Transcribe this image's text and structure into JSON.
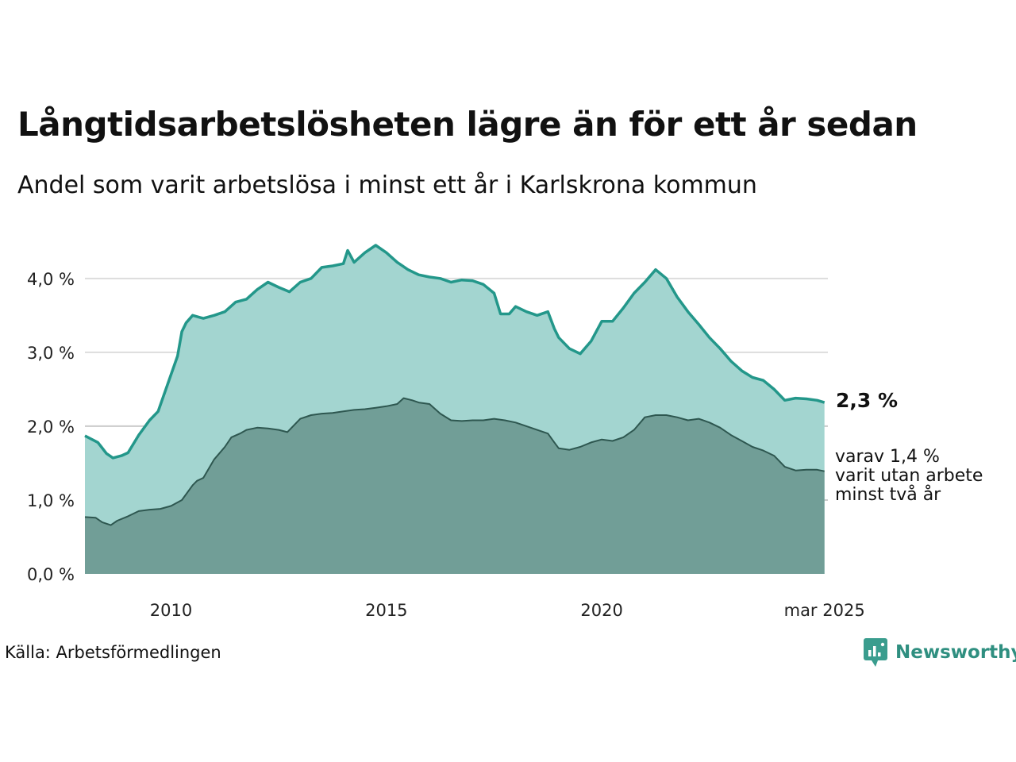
{
  "title": "Långtidsarbetslösheten lägre än för ett år sedan",
  "subtitle": "Andel som varit arbetslösa i minst ett år i Karlskrona kommun",
  "source": "Källa: Arbetsförmedlingen",
  "brand": "Newsworthy",
  "colors": {
    "series1_line": "#23978a",
    "series1_fill": "#a3d5d0",
    "series2_line": "#2e5750",
    "series2_fill": "#719e97",
    "grid": "#dddddd"
  },
  "chart_data": {
    "type": "area",
    "xlim": [
      2008.0,
      2025.25
    ],
    "ylim": [
      0,
      4.6
    ],
    "yticks": [
      {
        "value": 0,
        "label": "0,0 %"
      },
      {
        "value": 1,
        "label": "1,0 %"
      },
      {
        "value": 2,
        "label": "2,0 %"
      },
      {
        "value": 3,
        "label": "3,0 %"
      },
      {
        "value": 4,
        "label": "4,0 %"
      }
    ],
    "xticks": [
      {
        "value": 2010,
        "label": "2010"
      },
      {
        "value": 2015,
        "label": "2015"
      },
      {
        "value": 2020,
        "label": "2020"
      },
      {
        "value": 2025.17,
        "label": "mar 2025"
      }
    ],
    "grid": true,
    "series": [
      {
        "values": [
          [
            2008.0,
            1.87
          ],
          [
            2008.3,
            1.78
          ],
          [
            2008.5,
            1.63
          ],
          [
            2008.65,
            1.57
          ],
          [
            2008.85,
            1.6
          ],
          [
            2009.0,
            1.64
          ],
          [
            2009.25,
            1.88
          ],
          [
            2009.5,
            2.08
          ],
          [
            2009.7,
            2.2
          ],
          [
            2010.0,
            2.7
          ],
          [
            2010.15,
            2.95
          ],
          [
            2010.25,
            3.28
          ],
          [
            2010.35,
            3.4
          ],
          [
            2010.5,
            3.5
          ],
          [
            2010.75,
            3.46
          ],
          [
            2011.0,
            3.5
          ],
          [
            2011.25,
            3.55
          ],
          [
            2011.5,
            3.68
          ],
          [
            2011.75,
            3.72
          ],
          [
            2012.0,
            3.85
          ],
          [
            2012.25,
            3.95
          ],
          [
            2012.5,
            3.88
          ],
          [
            2012.75,
            3.82
          ],
          [
            2013.0,
            3.95
          ],
          [
            2013.25,
            4.0
          ],
          [
            2013.5,
            4.15
          ],
          [
            2013.75,
            4.17
          ],
          [
            2014.0,
            4.2
          ],
          [
            2014.1,
            4.38
          ],
          [
            2014.25,
            4.22
          ],
          [
            2014.5,
            4.35
          ],
          [
            2014.75,
            4.45
          ],
          [
            2015.0,
            4.35
          ],
          [
            2015.25,
            4.22
          ],
          [
            2015.5,
            4.12
          ],
          [
            2015.75,
            4.05
          ],
          [
            2016.0,
            4.02
          ],
          [
            2016.25,
            4.0
          ],
          [
            2016.5,
            3.95
          ],
          [
            2016.75,
            3.98
          ],
          [
            2017.0,
            3.97
          ],
          [
            2017.25,
            3.92
          ],
          [
            2017.5,
            3.8
          ],
          [
            2017.65,
            3.52
          ],
          [
            2017.85,
            3.52
          ],
          [
            2018.0,
            3.62
          ],
          [
            2018.25,
            3.55
          ],
          [
            2018.5,
            3.5
          ],
          [
            2018.75,
            3.55
          ],
          [
            2018.9,
            3.32
          ],
          [
            2019.0,
            3.2
          ],
          [
            2019.25,
            3.05
          ],
          [
            2019.5,
            2.98
          ],
          [
            2019.75,
            3.15
          ],
          [
            2020.0,
            3.42
          ],
          [
            2020.25,
            3.42
          ],
          [
            2020.5,
            3.6
          ],
          [
            2020.75,
            3.8
          ],
          [
            2021.0,
            3.95
          ],
          [
            2021.25,
            4.12
          ],
          [
            2021.5,
            4.0
          ],
          [
            2021.75,
            3.75
          ],
          [
            2022.0,
            3.55
          ],
          [
            2022.25,
            3.38
          ],
          [
            2022.5,
            3.2
          ],
          [
            2022.75,
            3.05
          ],
          [
            2023.0,
            2.88
          ],
          [
            2023.25,
            2.75
          ],
          [
            2023.5,
            2.66
          ],
          [
            2023.75,
            2.62
          ],
          [
            2024.0,
            2.5
          ],
          [
            2024.25,
            2.35
          ],
          [
            2024.5,
            2.38
          ],
          [
            2024.75,
            2.37
          ],
          [
            2025.0,
            2.35
          ],
          [
            2025.17,
            2.32
          ]
        ]
      },
      {
        "values": [
          [
            2008.0,
            0.77
          ],
          [
            2008.25,
            0.76
          ],
          [
            2008.4,
            0.7
          ],
          [
            2008.6,
            0.66
          ],
          [
            2008.75,
            0.72
          ],
          [
            2009.0,
            0.78
          ],
          [
            2009.25,
            0.85
          ],
          [
            2009.5,
            0.87
          ],
          [
            2009.75,
            0.88
          ],
          [
            2010.0,
            0.92
          ],
          [
            2010.25,
            1.0
          ],
          [
            2010.5,
            1.2
          ],
          [
            2010.6,
            1.26
          ],
          [
            2010.75,
            1.3
          ],
          [
            2011.0,
            1.55
          ],
          [
            2011.25,
            1.72
          ],
          [
            2011.4,
            1.85
          ],
          [
            2011.6,
            1.9
          ],
          [
            2011.75,
            1.95
          ],
          [
            2012.0,
            1.98
          ],
          [
            2012.25,
            1.97
          ],
          [
            2012.5,
            1.95
          ],
          [
            2012.7,
            1.92
          ],
          [
            2013.0,
            2.1
          ],
          [
            2013.25,
            2.15
          ],
          [
            2013.5,
            2.17
          ],
          [
            2013.75,
            2.18
          ],
          [
            2014.0,
            2.2
          ],
          [
            2014.25,
            2.22
          ],
          [
            2014.5,
            2.23
          ],
          [
            2014.75,
            2.25
          ],
          [
            2015.0,
            2.27
          ],
          [
            2015.25,
            2.3
          ],
          [
            2015.4,
            2.38
          ],
          [
            2015.6,
            2.35
          ],
          [
            2015.75,
            2.32
          ],
          [
            2016.0,
            2.3
          ],
          [
            2016.25,
            2.17
          ],
          [
            2016.5,
            2.08
          ],
          [
            2016.75,
            2.07
          ],
          [
            2017.0,
            2.08
          ],
          [
            2017.25,
            2.08
          ],
          [
            2017.5,
            2.1
          ],
          [
            2017.75,
            2.08
          ],
          [
            2018.0,
            2.05
          ],
          [
            2018.25,
            2.0
          ],
          [
            2018.5,
            1.95
          ],
          [
            2018.75,
            1.9
          ],
          [
            2018.9,
            1.78
          ],
          [
            2019.0,
            1.7
          ],
          [
            2019.25,
            1.68
          ],
          [
            2019.5,
            1.72
          ],
          [
            2019.75,
            1.78
          ],
          [
            2020.0,
            1.82
          ],
          [
            2020.25,
            1.8
          ],
          [
            2020.5,
            1.85
          ],
          [
            2020.75,
            1.95
          ],
          [
            2021.0,
            2.12
          ],
          [
            2021.25,
            2.15
          ],
          [
            2021.5,
            2.15
          ],
          [
            2021.75,
            2.12
          ],
          [
            2022.0,
            2.08
          ],
          [
            2022.25,
            2.1
          ],
          [
            2022.5,
            2.05
          ],
          [
            2022.75,
            1.98
          ],
          [
            2023.0,
            1.88
          ],
          [
            2023.25,
            1.8
          ],
          [
            2023.5,
            1.72
          ],
          [
            2023.75,
            1.67
          ],
          [
            2024.0,
            1.6
          ],
          [
            2024.25,
            1.45
          ],
          [
            2024.5,
            1.4
          ],
          [
            2024.75,
            1.41
          ],
          [
            2025.0,
            1.41
          ],
          [
            2025.17,
            1.39
          ]
        ]
      }
    ],
    "end_labels": {
      "main": "2,3 %",
      "sub_lines": [
        "varav 1,4 %",
        "varit utan arbete",
        "minst två år"
      ]
    }
  }
}
